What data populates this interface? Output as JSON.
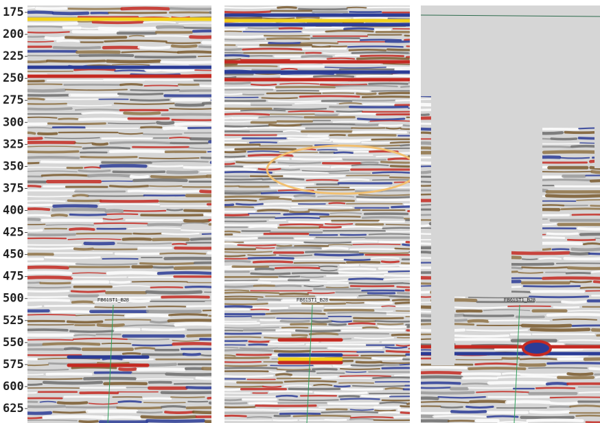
{
  "depth_axis": {
    "ticks": [
      175,
      200,
      225,
      250,
      275,
      300,
      325,
      350,
      375,
      400,
      425,
      450,
      475,
      500,
      525,
      550,
      575,
      600,
      625
    ]
  },
  "panels": [
    {
      "well_label": "FB61ST1_B28"
    },
    {
      "well_label": "FB61ST1_B28"
    },
    {
      "well_label": "FB61ST1_B28"
    }
  ]
}
